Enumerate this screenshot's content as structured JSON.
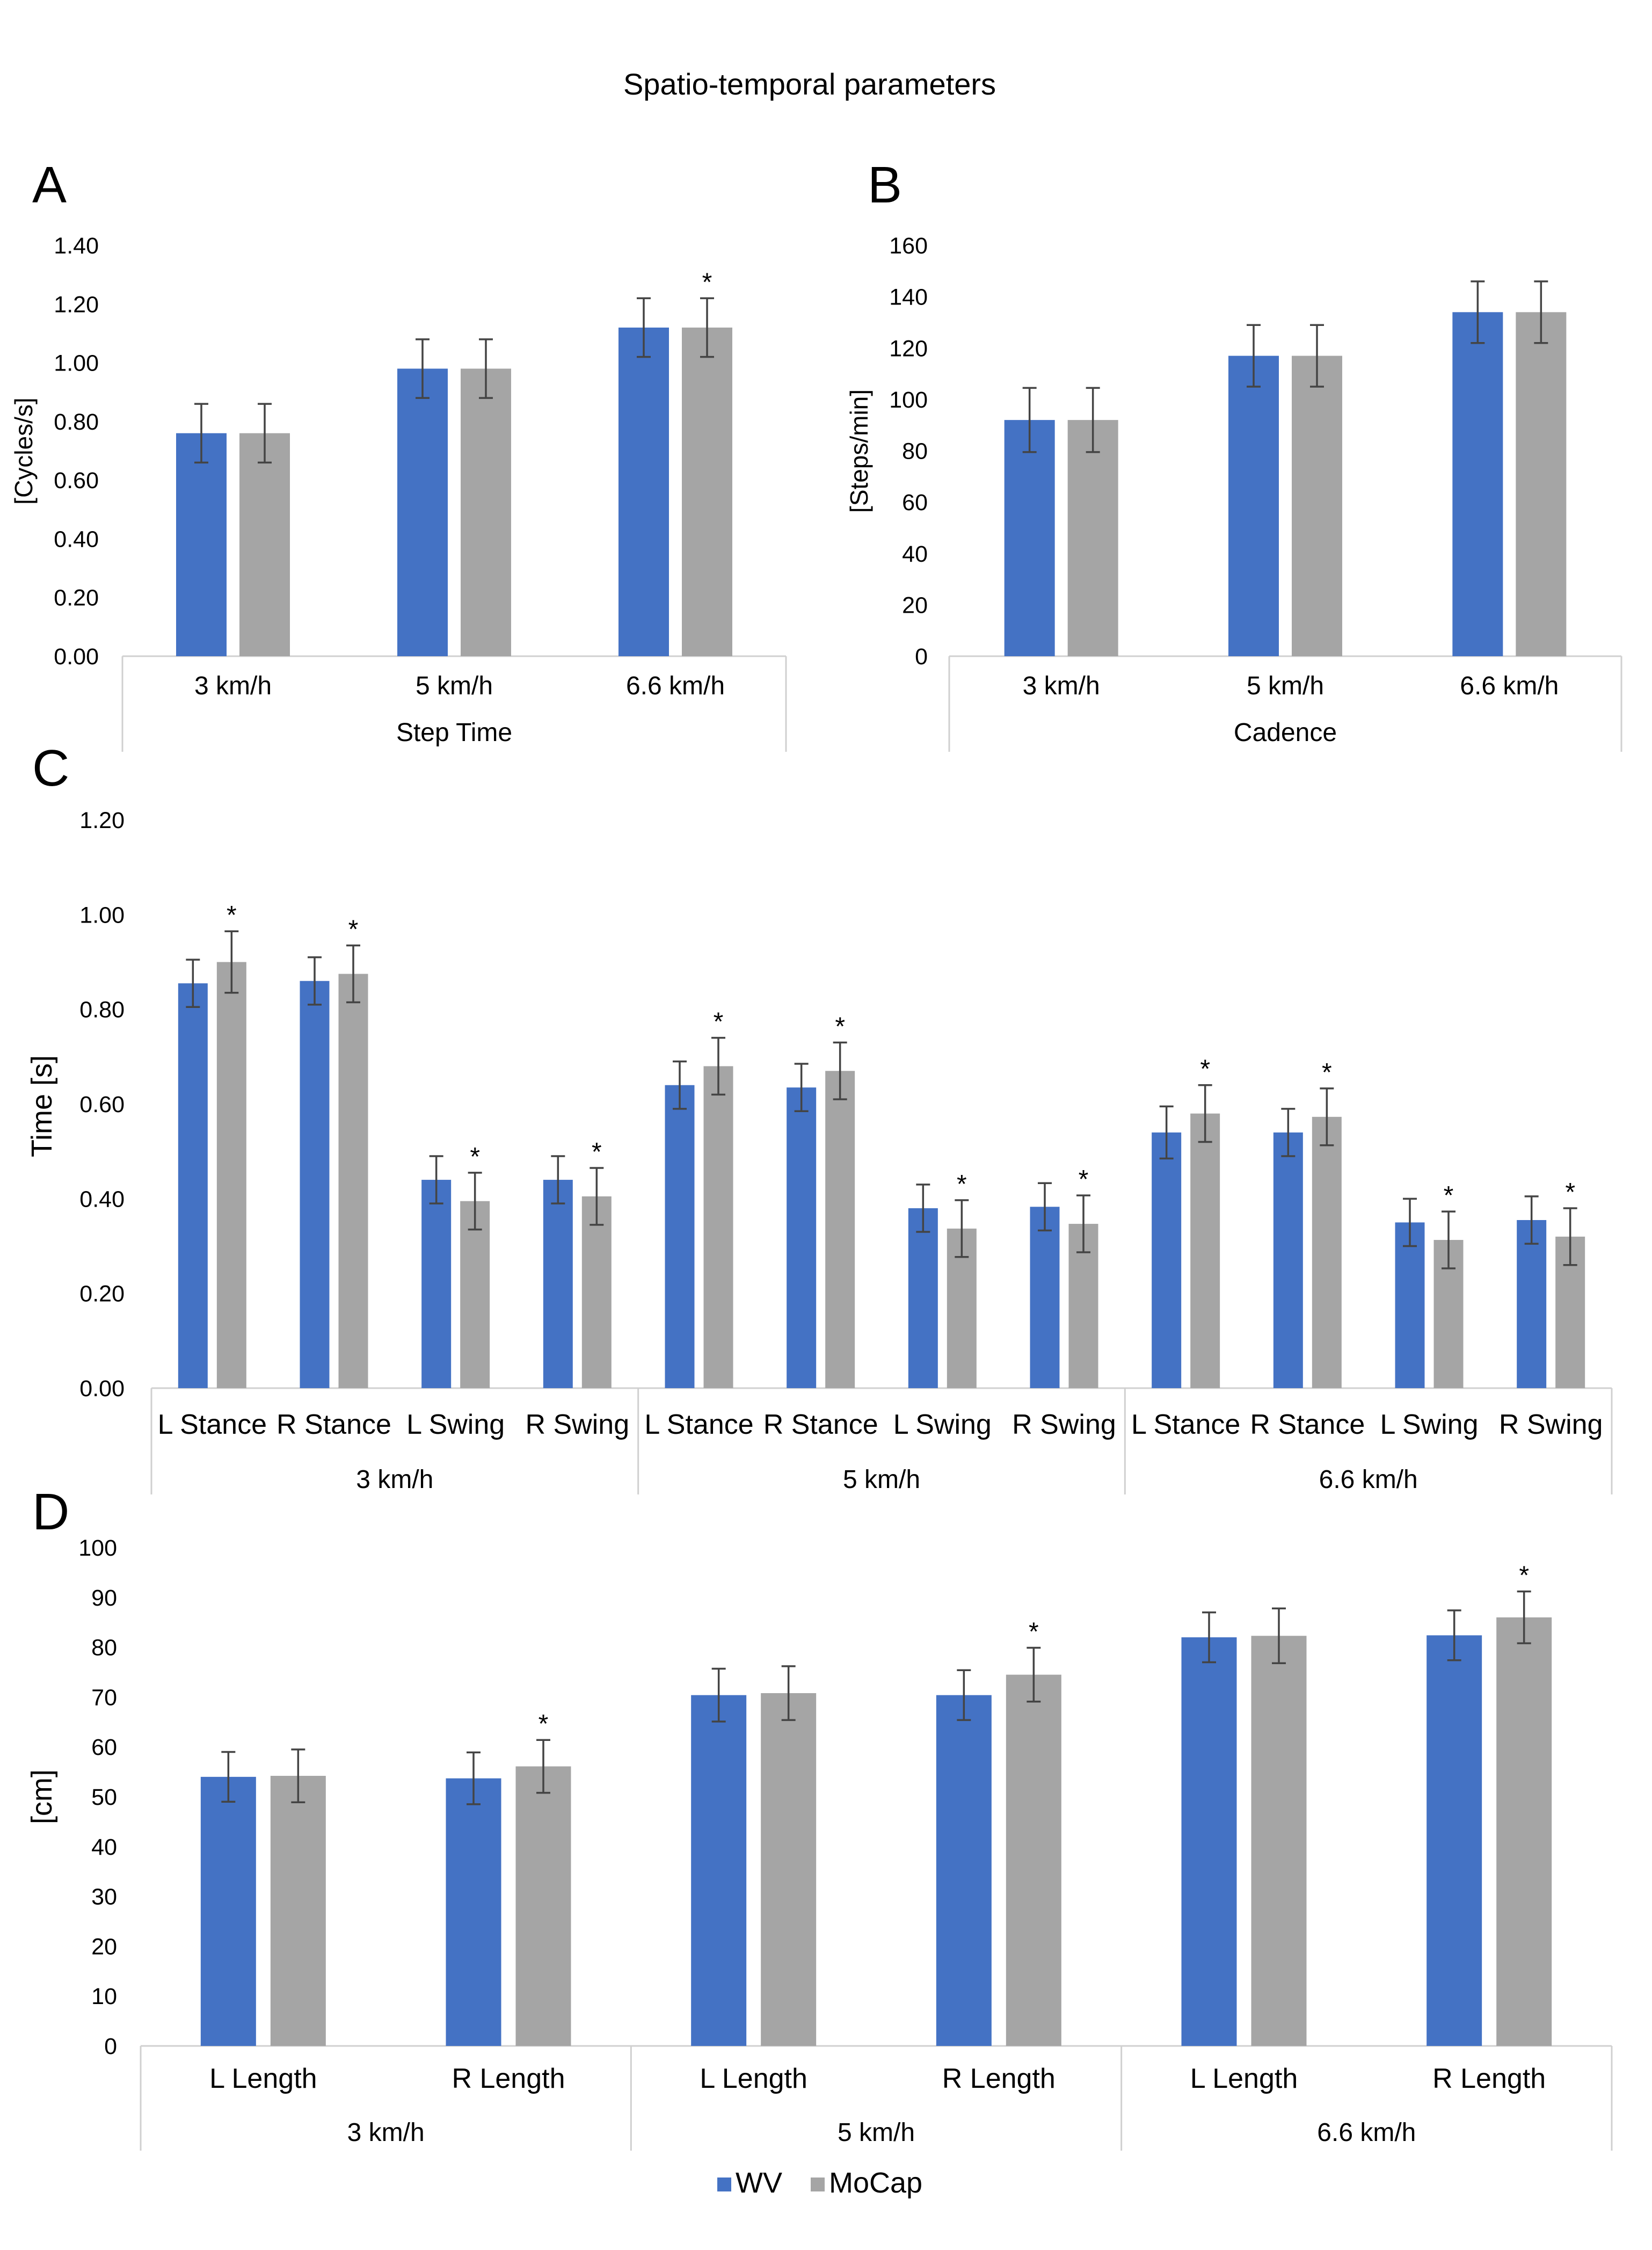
{
  "figure_title": "Spatio-temporal parameters",
  "legend": [
    {
      "name": "WV",
      "color": "#4472C4"
    },
    {
      "name": "MoCap",
      "color": "#A5A5A5"
    }
  ],
  "chart_data": [
    {
      "id": "A",
      "type": "bar",
      "panel_label": "A",
      "xlabel": "Step Time",
      "ylabel": "[Cycles/s]",
      "ylim": [
        0,
        1.4
      ],
      "yticks": [
        "0.00",
        "0.20",
        "0.40",
        "0.60",
        "0.80",
        "1.00",
        "1.20",
        "1.40"
      ],
      "categories": [
        "3 km/h",
        "5 km/h",
        "6.6 km/h"
      ],
      "series": [
        {
          "name": "WV",
          "values": [
            0.76,
            0.98,
            1.12
          ],
          "errors": [
            0.1,
            0.1,
            0.1
          ]
        },
        {
          "name": "MoCap",
          "values": [
            0.76,
            0.98,
            1.12
          ],
          "errors": [
            0.1,
            0.1,
            0.1
          ]
        }
      ],
      "annotations": [
        {
          "category": 2,
          "series": 1,
          "text": "*"
        }
      ]
    },
    {
      "id": "B",
      "type": "bar",
      "panel_label": "B",
      "xlabel": "Cadence",
      "ylabel": "[Steps/min]",
      "ylim": [
        0,
        160
      ],
      "yticks": [
        "0",
        "20",
        "40",
        "60",
        "80",
        "100",
        "120",
        "140",
        "160"
      ],
      "categories": [
        "3 km/h",
        "5 km/h",
        "6.6 km/h"
      ],
      "series": [
        {
          "name": "WV",
          "values": [
            92,
            117,
            134
          ],
          "errors": [
            12.5,
            12,
            12
          ]
        },
        {
          "name": "MoCap",
          "values": [
            92,
            117,
            134
          ],
          "errors": [
            12.5,
            12,
            12
          ]
        }
      ],
      "annotations": []
    },
    {
      "id": "C",
      "type": "bar",
      "panel_label": "C",
      "ylabel": "Time [s]",
      "ylim": [
        0,
        1.2
      ],
      "yticks": [
        "0.00",
        "0.20",
        "0.40",
        "0.60",
        "0.80",
        "1.00",
        "1.20"
      ],
      "categories": [
        "L Stance",
        "R Stance",
        "L Swing",
        "R Swing",
        "L Stance",
        "R Stance",
        "L Swing",
        "R Swing",
        "L Stance",
        "R Stance",
        "L Swing",
        "R Swing"
      ],
      "groups": [
        "3 km/h",
        "5 km/h",
        "6.6 km/h"
      ],
      "series": [
        {
          "name": "WV",
          "values": [
            0.855,
            0.86,
            0.44,
            0.44,
            0.64,
            0.635,
            0.38,
            0.383,
            0.54,
            0.54,
            0.35,
            0.355
          ],
          "errors": [
            0.05,
            0.05,
            0.05,
            0.05,
            0.05,
            0.05,
            0.05,
            0.05,
            0.055,
            0.05,
            0.05,
            0.05
          ]
        },
        {
          "name": "MoCap",
          "values": [
            0.9,
            0.875,
            0.395,
            0.405,
            0.68,
            0.67,
            0.337,
            0.347,
            0.58,
            0.573,
            0.313,
            0.32
          ],
          "errors": [
            0.065,
            0.06,
            0.06,
            0.06,
            0.06,
            0.06,
            0.06,
            0.06,
            0.06,
            0.06,
            0.06,
            0.06
          ]
        }
      ],
      "annotations": [
        {
          "category": 0,
          "series": 1,
          "text": "*"
        },
        {
          "category": 1,
          "series": 1,
          "text": "*"
        },
        {
          "category": 2,
          "series": 1,
          "text": "*"
        },
        {
          "category": 3,
          "series": 1,
          "text": "*"
        },
        {
          "category": 4,
          "series": 1,
          "text": "*"
        },
        {
          "category": 5,
          "series": 1,
          "text": "*"
        },
        {
          "category": 6,
          "series": 1,
          "text": "*"
        },
        {
          "category": 7,
          "series": 1,
          "text": "*"
        },
        {
          "category": 8,
          "series": 1,
          "text": "*"
        },
        {
          "category": 9,
          "series": 1,
          "text": "*"
        },
        {
          "category": 10,
          "series": 1,
          "text": "*"
        },
        {
          "category": 11,
          "series": 1,
          "text": "*"
        }
      ]
    },
    {
      "id": "D",
      "type": "bar",
      "panel_label": "D",
      "ylabel": "[cm]",
      "ylim": [
        0,
        100
      ],
      "yticks": [
        "0",
        "10",
        "20",
        "30",
        "40",
        "50",
        "60",
        "70",
        "80",
        "90",
        "100"
      ],
      "categories": [
        "L Length",
        "R Length",
        "L Length",
        "R Length",
        "L Length",
        "R Length"
      ],
      "groups": [
        "3 km/h",
        "5 km/h",
        "6.6 km/h"
      ],
      "series": [
        {
          "name": "WV",
          "values": [
            54,
            53.7,
            70.4,
            70.4,
            82,
            82.4
          ],
          "errors": [
            5,
            5.2,
            5.3,
            5,
            5,
            5
          ]
        },
        {
          "name": "MoCap",
          "values": [
            54.2,
            56.1,
            70.8,
            74.5,
            82.3,
            86
          ],
          "errors": [
            5.3,
            5.3,
            5.4,
            5.4,
            5.5,
            5.2
          ]
        }
      ],
      "annotations": [
        {
          "category": 1,
          "series": 1,
          "text": "*"
        },
        {
          "category": 3,
          "series": 1,
          "text": "*"
        },
        {
          "category": 5,
          "series": 1,
          "text": "*"
        }
      ]
    }
  ]
}
